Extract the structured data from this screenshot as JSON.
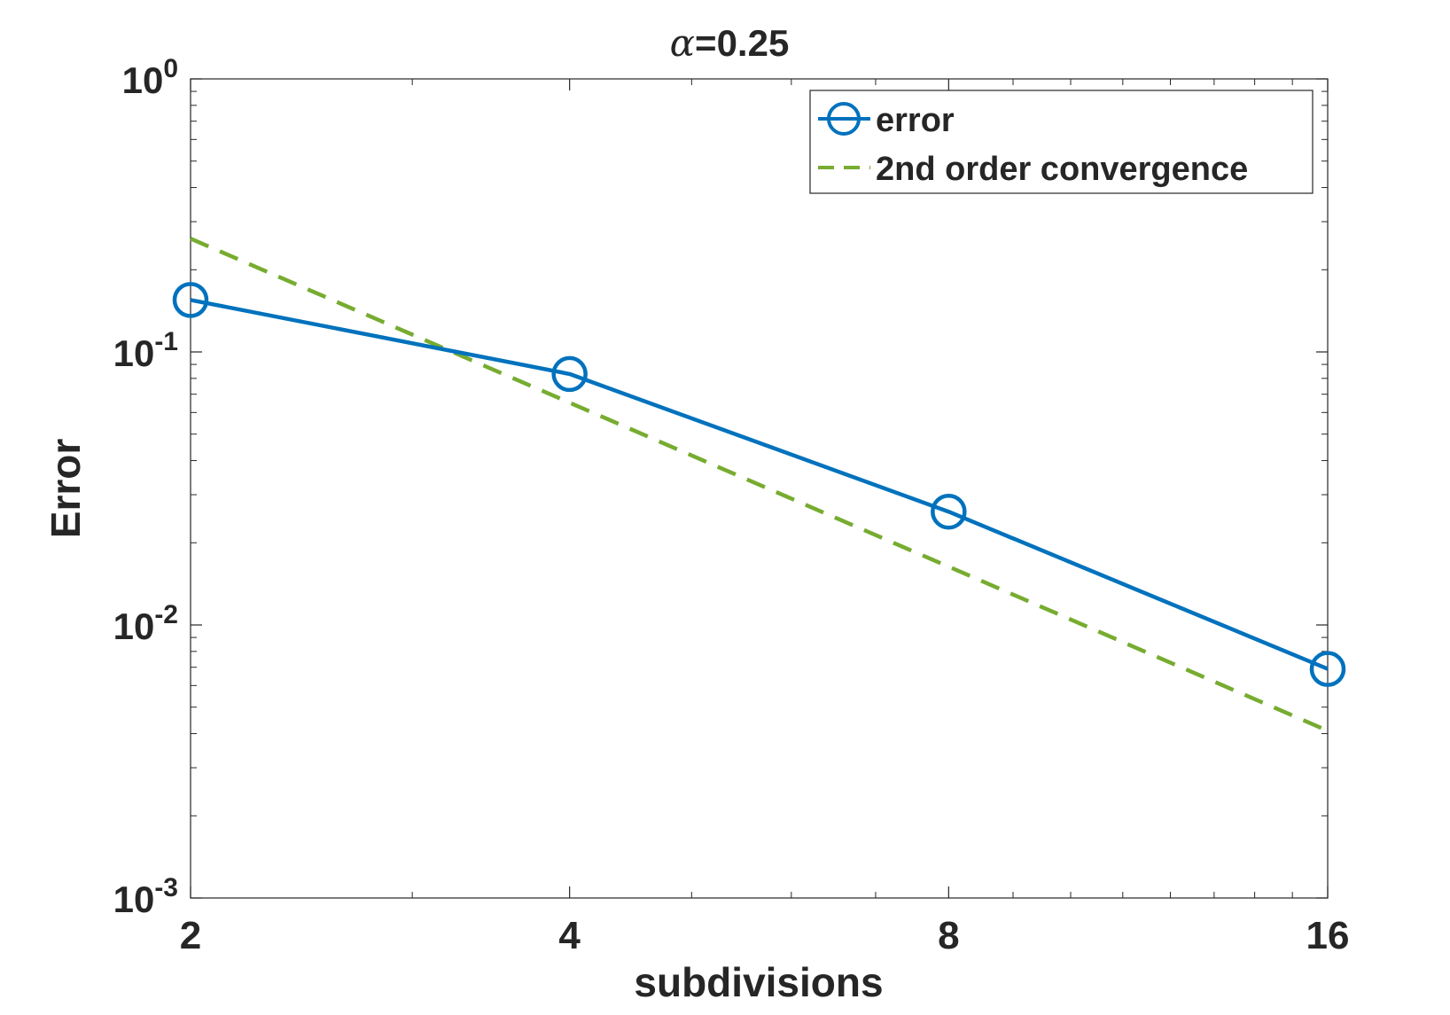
{
  "chart_data": {
    "type": "line",
    "title": "α=0.25",
    "title_parts": {
      "symbol": "α",
      "rest": "=0.25"
    },
    "xlabel": "subdivisions",
    "ylabel": "Error",
    "x_scale": "log2",
    "y_scale": "log10",
    "xlim": [
      2,
      16
    ],
    "ylim": [
      0.001,
      1
    ],
    "x_ticks": [
      2,
      4,
      8,
      16
    ],
    "x_tick_labels": [
      "2",
      "4",
      "8",
      "16"
    ],
    "y_ticks": [
      {
        "value": 1,
        "base": "10",
        "exp": "0"
      },
      {
        "value": 0.1,
        "base": "10",
        "exp": "-1"
      },
      {
        "value": 0.01,
        "base": "10",
        "exp": "-2"
      },
      {
        "value": 0.001,
        "base": "10",
        "exp": "-3"
      }
    ],
    "grid": false,
    "box": true,
    "legend_position": "top-right",
    "series": [
      {
        "name": "error",
        "style": "solid",
        "marker": "circle",
        "color": "#0072BD",
        "x": [
          2,
          4,
          8,
          16
        ],
        "y": [
          0.155,
          0.083,
          0.026,
          0.0069
        ]
      },
      {
        "name": "2nd order convergence",
        "style": "dashed",
        "marker": "none",
        "color": "#77AC30",
        "x": [
          2,
          16
        ],
        "y": [
          0.26,
          0.0041
        ]
      }
    ]
  }
}
